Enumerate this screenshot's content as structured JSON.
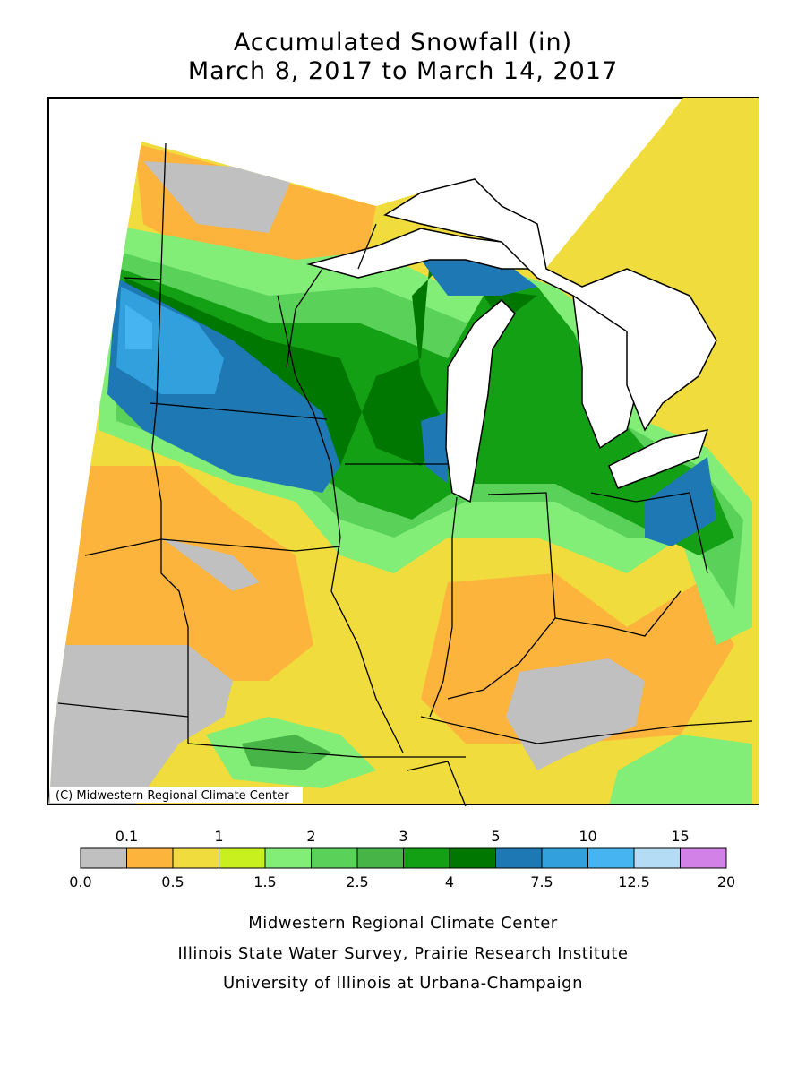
{
  "title": {
    "line1": "Accumulated Snowfall (in)",
    "line2": "March 8, 2017 to March 14, 2017"
  },
  "map": {
    "copyright": "(C) Midwestern Regional Climate Center",
    "land_color": "#ffffff",
    "border_color": "#000000"
  },
  "legend": {
    "top_labels": [
      "0.1",
      "1",
      "2",
      "3",
      "5",
      "10",
      "15"
    ],
    "bottom_labels": [
      "0.0",
      "0.5",
      "1.5",
      "2.5",
      "4",
      "7.5",
      "12.5",
      "20"
    ],
    "bins": [
      {
        "range": "0.0–0.1",
        "color": "#c0c0c0"
      },
      {
        "range": "0.1–0.5",
        "color": "#fdb43c"
      },
      {
        "range": "0.5–1",
        "color": "#f0dc3c"
      },
      {
        "range": "1–1.5",
        "color": "#c8f01e"
      },
      {
        "range": "1.5–2",
        "color": "#82ee78"
      },
      {
        "range": "2–2.5",
        "color": "#5ad25a"
      },
      {
        "range": "2.5–3",
        "color": "#46b446"
      },
      {
        "range": "3–4",
        "color": "#14a014"
      },
      {
        "range": "4–5",
        "color": "#007800"
      },
      {
        "range": "5–7.5",
        "color": "#1e78b4"
      },
      {
        "range": "7.5–10",
        "color": "#32a0dc"
      },
      {
        "range": "10–12.5",
        "color": "#46b4f0"
      },
      {
        "range": "12.5–15",
        "color": "#b4dcf5"
      },
      {
        "range": "15–20",
        "color": "#d282e6"
      }
    ]
  },
  "credits": {
    "line1": "Midwestern Regional Climate Center",
    "line2": "Illinois State Water Survey, Prairie Research Institute",
    "line3": "University of Illinois at Urbana-Champaign"
  }
}
